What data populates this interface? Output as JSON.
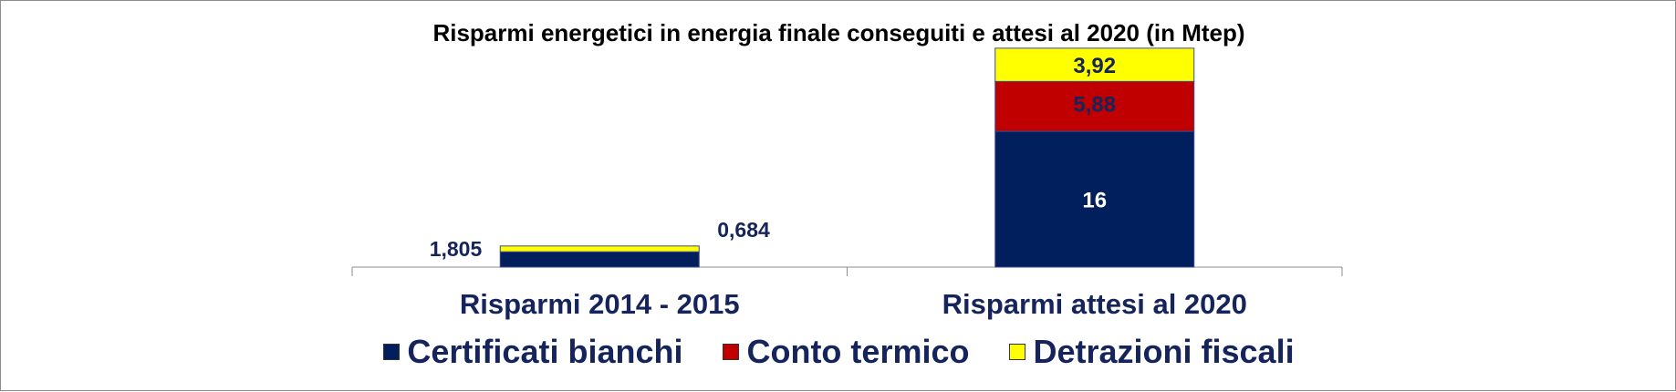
{
  "chart_data": {
    "type": "bar",
    "stacked": true,
    "title": "Risparmi energetici in energia finale conseguiti e attesi al 2020 (in Mtep)",
    "categories": [
      "Risparmi 2014 - 2015",
      "Risparmi attesi al 2020"
    ],
    "series": [
      {
        "name": "Certificati bianchi",
        "color": "#001f5c",
        "values": [
          1.805,
          16
        ],
        "labels": [
          "1,805",
          "16"
        ]
      },
      {
        "name": "Conto termico",
        "color": "#c00000",
        "values": [
          0,
          5.88
        ],
        "labels": [
          "",
          "5,88"
        ]
      },
      {
        "name": "Detrazioni fiscali",
        "color": "#ffff00",
        "values": [
          0.684,
          3.92
        ],
        "labels": [
          "0,684",
          "3,92"
        ]
      }
    ],
    "ylim": [
      0,
      26
    ],
    "grid": false,
    "legend_position": "bottom",
    "xlabel": "",
    "ylabel": ""
  }
}
